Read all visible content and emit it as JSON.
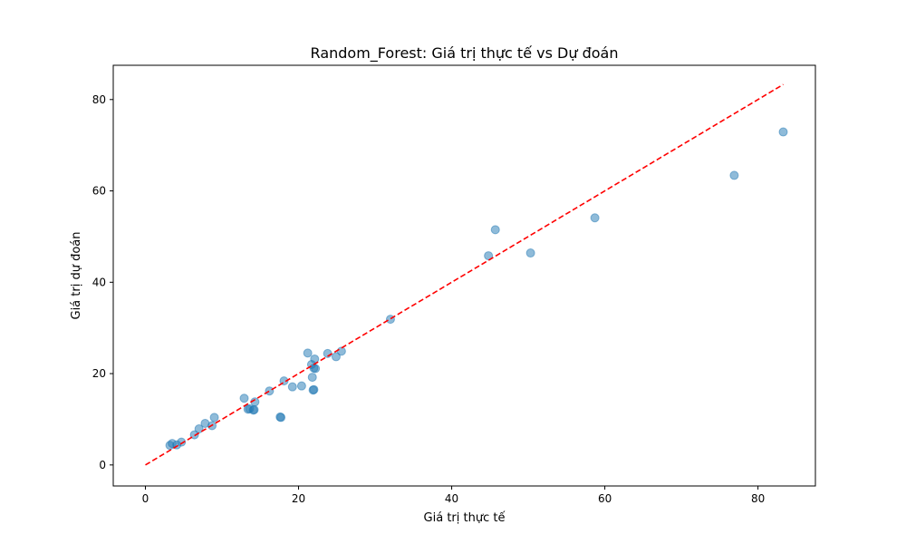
{
  "chart_data": {
    "type": "scatter",
    "title": "Random_Forest: Giá trị thực tế vs Dự đoán",
    "xlabel": "Giá trị thực tế",
    "ylabel": "Giá trị dự đoán",
    "xlim": [
      -4.2,
      87.5
    ],
    "ylim": [
      -4.6,
      87.5
    ],
    "xticks": [
      0,
      20,
      40,
      60,
      80
    ],
    "yticks": [
      0,
      20,
      40,
      60,
      80
    ],
    "grid": false,
    "legend": "none",
    "marker_color": "#1f77b4",
    "marker_alpha": 0.5,
    "reference_line": {
      "style": "dashed",
      "color": "#ff0000",
      "x": [
        0,
        83.3
      ],
      "y": [
        0,
        83.3
      ]
    },
    "points": [
      {
        "x": 3.2,
        "y": 4.3
      },
      {
        "x": 3.5,
        "y": 4.7
      },
      {
        "x": 4.1,
        "y": 4.4
      },
      {
        "x": 4.7,
        "y": 5.0
      },
      {
        "x": 6.4,
        "y": 6.6
      },
      {
        "x": 7.0,
        "y": 7.9
      },
      {
        "x": 7.8,
        "y": 9.1
      },
      {
        "x": 8.7,
        "y": 8.6
      },
      {
        "x": 9.0,
        "y": 10.4
      },
      {
        "x": 12.9,
        "y": 14.6
      },
      {
        "x": 13.4,
        "y": 12.2
      },
      {
        "x": 13.6,
        "y": 12.3
      },
      {
        "x": 14.1,
        "y": 12.0
      },
      {
        "x": 14.2,
        "y": 12.1
      },
      {
        "x": 14.3,
        "y": 13.8
      },
      {
        "x": 16.2,
        "y": 16.2
      },
      {
        "x": 17.6,
        "y": 10.5
      },
      {
        "x": 17.7,
        "y": 10.4
      },
      {
        "x": 18.1,
        "y": 18.4
      },
      {
        "x": 19.2,
        "y": 17.1
      },
      {
        "x": 20.4,
        "y": 17.3
      },
      {
        "x": 21.2,
        "y": 24.5
      },
      {
        "x": 21.7,
        "y": 22.0
      },
      {
        "x": 21.8,
        "y": 19.2
      },
      {
        "x": 21.9,
        "y": 16.4
      },
      {
        "x": 22.0,
        "y": 16.5
      },
      {
        "x": 22.0,
        "y": 21.2
      },
      {
        "x": 22.1,
        "y": 23.2
      },
      {
        "x": 22.2,
        "y": 21.1
      },
      {
        "x": 23.8,
        "y": 24.4
      },
      {
        "x": 24.9,
        "y": 23.7
      },
      {
        "x": 25.6,
        "y": 24.9
      },
      {
        "x": 32.0,
        "y": 31.9
      },
      {
        "x": 44.8,
        "y": 45.8
      },
      {
        "x": 45.7,
        "y": 51.5
      },
      {
        "x": 50.3,
        "y": 46.4
      },
      {
        "x": 58.7,
        "y": 54.1
      },
      {
        "x": 76.9,
        "y": 63.4
      },
      {
        "x": 83.3,
        "y": 72.9
      }
    ]
  }
}
